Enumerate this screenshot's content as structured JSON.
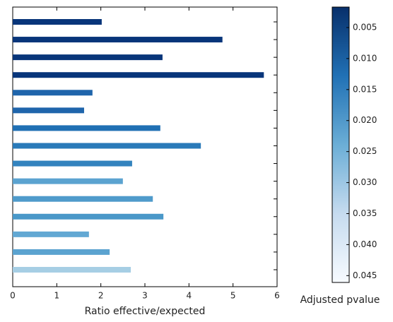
{
  "chart_data": {
    "type": "barh",
    "categories": [
      null,
      null,
      null,
      null,
      null,
      null,
      null,
      null,
      null,
      null,
      null,
      null,
      null,
      null,
      null
    ],
    "values": [
      2.02,
      4.76,
      3.4,
      5.7,
      1.81,
      1.62,
      3.35,
      4.27,
      2.71,
      2.5,
      3.18,
      3.42,
      1.73,
      2.2,
      2.68
    ],
    "colors": [
      "#08357a",
      "#08357a",
      "#08357a",
      "#08357a",
      "#1f65ab",
      "#1f65ab",
      "#2070b4",
      "#2a7ab9",
      "#3383be",
      "#5ba3d0",
      "#4f9bcb",
      "#4a98c9",
      "#62a8d3",
      "#5ba3d0",
      "#a6cee4"
    ],
    "xlim": [
      0,
      6
    ],
    "xticks": [
      0,
      1,
      2,
      3,
      4,
      5,
      6
    ],
    "xlabel": "Ratio effective/expected",
    "colorbar": {
      "label": "Adjusted pvalue",
      "lim": [
        0.0461,
        0.0017
      ],
      "ticks": [
        0.005,
        {
          "value": 0.01,
          "label": "0.010"
        },
        0.015,
        {
          "value": 0.02,
          "label": "0.020"
        },
        0.025,
        {
          "value": 0.03,
          "label": "0.030"
        },
        0.035,
        {
          "value": 0.04,
          "label": "0.040"
        },
        0.045
      ]
    }
  }
}
